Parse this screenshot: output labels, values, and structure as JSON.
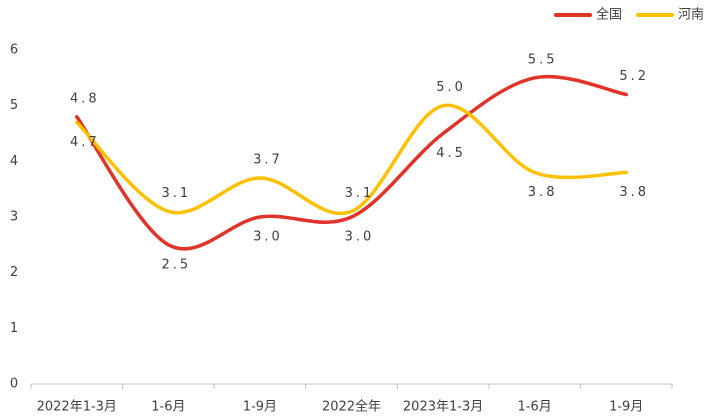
{
  "chart_data": {
    "type": "line",
    "categories": [
      "2022年1-3月",
      "1-6月",
      "1-9月",
      "2022全年",
      "2023年1-3月",
      "1-6月",
      "1-9月"
    ],
    "series": [
      {
        "name": "全国",
        "color": "#e0332a",
        "values": [
          4.8,
          2.5,
          3.0,
          3.0,
          4.5,
          5.5,
          5.2
        ],
        "value_labels": [
          "4.8",
          "2.5",
          "3.0",
          "3.0",
          "4.5",
          "5.5",
          "5.2"
        ]
      },
      {
        "name": "河南",
        "color": "#ffc000",
        "values": [
          4.7,
          3.1,
          3.7,
          3.1,
          5.0,
          3.8,
          3.8
        ],
        "value_labels": [
          "4.7",
          "3.1",
          "3.7",
          "3.1",
          "5.0",
          "3.8",
          "3.8"
        ]
      }
    ],
    "ylim": [
      0,
      6
    ],
    "yticks": [
      0,
      1,
      2,
      3,
      4,
      5,
      6
    ],
    "smooth": true,
    "legend": "top-right"
  }
}
